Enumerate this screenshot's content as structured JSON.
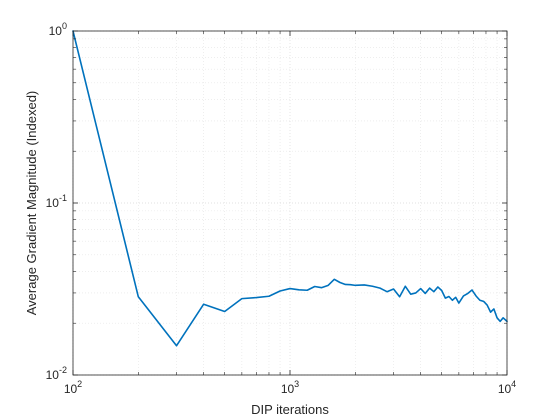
{
  "chart_data": {
    "type": "line",
    "xlabel": "DIP iterations",
    "ylabel": "Average Gradient Magnitude (Indexed)",
    "xscale": "log",
    "yscale": "log",
    "xlim": [
      100,
      10000
    ],
    "ylim": [
      0.01,
      1
    ],
    "grid": true,
    "minor_grid": true,
    "legend": "none",
    "x_ticks": [
      {
        "value": 100,
        "base": "10",
        "exp": "2"
      },
      {
        "value": 1000,
        "base": "10",
        "exp": "3"
      },
      {
        "value": 10000,
        "base": "10",
        "exp": "4"
      }
    ],
    "y_ticks": [
      {
        "value": 0.01,
        "base": "10",
        "exp": "-2"
      },
      {
        "value": 0.1,
        "base": "10",
        "exp": "-1"
      },
      {
        "value": 1,
        "base": "10",
        "exp": "0"
      }
    ],
    "colors": {
      "line": "#0072bd",
      "axis": "#262626",
      "grid": "#d9d9d9",
      "minor_grid": "#e4e4e4"
    },
    "series": [
      {
        "x": [
          100,
          200,
          300,
          400,
          500,
          600,
          700,
          800,
          900,
          1000,
          1100,
          1200,
          1300,
          1400,
          1500,
          1600,
          1700,
          1800,
          1900,
          2000,
          2200,
          2400,
          2600,
          2800,
          3000,
          3200,
          3400,
          3600,
          3800,
          4000,
          4200,
          4400,
          4600,
          4800,
          5000,
          5200,
          5400,
          5600,
          5800,
          6000,
          6300,
          6600,
          6900,
          7200,
          7500,
          7800,
          8100,
          8400,
          8700,
          9000,
          9300,
          9600,
          10000
        ],
        "y": [
          1.0,
          0.0285,
          0.0148,
          0.0258,
          0.0234,
          0.0278,
          0.0282,
          0.0287,
          0.0308,
          0.0318,
          0.0313,
          0.0311,
          0.0327,
          0.0322,
          0.0332,
          0.036,
          0.0345,
          0.0336,
          0.0335,
          0.0332,
          0.0334,
          0.0328,
          0.032,
          0.0305,
          0.0316,
          0.0285,
          0.0328,
          0.0295,
          0.03,
          0.0318,
          0.0298,
          0.032,
          0.0305,
          0.0325,
          0.031,
          0.028,
          0.0286,
          0.0272,
          0.0283,
          0.0262,
          0.0288,
          0.0298,
          0.0312,
          0.0288,
          0.0272,
          0.0268,
          0.0255,
          0.0232,
          0.0242,
          0.0215,
          0.0205,
          0.0215,
          0.0205
        ]
      }
    ]
  }
}
